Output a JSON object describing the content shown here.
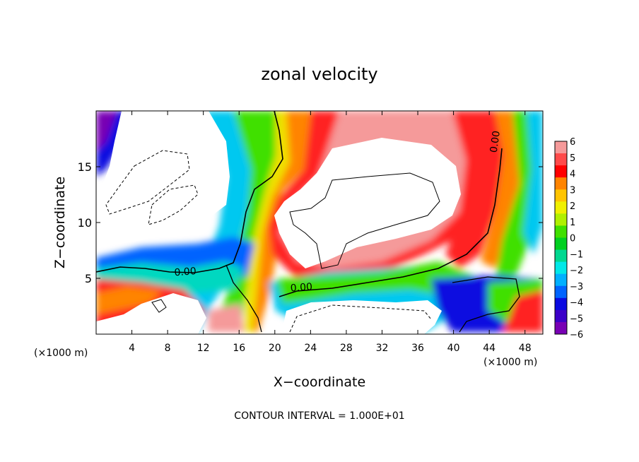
{
  "chart_data": {
    "type": "heatmap",
    "title": "zonal velocity",
    "xlabel": "X−coordinate",
    "ylabel": "Z−coordinate",
    "x_unit_left": "(×1000 m)",
    "x_unit_right": "(×1000 m)",
    "xlim": [
      0,
      50
    ],
    "ylim": [
      0,
      20
    ],
    "x_ticks": [
      4,
      8,
      12,
      16,
      20,
      24,
      28,
      32,
      36,
      40,
      44,
      48
    ],
    "y_ticks": [
      5,
      10,
      15
    ],
    "footer": "CONTOUR INTERVAL = 1.000E+01",
    "contour_labels": [
      {
        "text": "0.00",
        "x": 10,
        "y": 5.3
      },
      {
        "text": "0.00",
        "x": 23,
        "y": 3.9
      },
      {
        "text": "0.00",
        "x": 45,
        "y": 17.2
      }
    ],
    "colorbar": {
      "levels": [
        -6,
        -5,
        -4,
        -3,
        -2,
        -1,
        0,
        1,
        2,
        3,
        4,
        5,
        6
      ],
      "labels": [
        "6",
        "5",
        "4",
        "3",
        "2",
        "1",
        "0",
        "−1",
        "−2",
        "−3",
        "−4",
        "−5",
        "−6"
      ],
      "colors": [
        "#f59a9a",
        "#ff4a4a",
        "#ff0000",
        "#ff8400",
        "#ffc400",
        "#f0f000",
        "#b0f000",
        "#40e000",
        "#00d020",
        "#00d890",
        "#00e8e8",
        "#00b0ff",
        "#0064ff",
        "#0a0ae0",
        "#3c00c8",
        "#7800b4"
      ]
    }
  }
}
